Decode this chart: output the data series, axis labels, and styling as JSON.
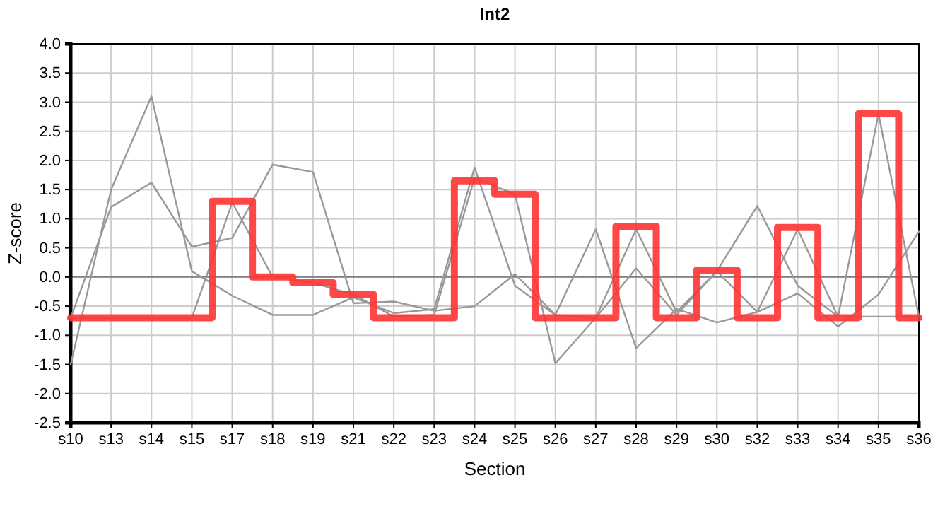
{
  "chart_data": {
    "type": "line",
    "title": "Int2",
    "xlabel": "Section",
    "ylabel": "Z-score",
    "categories": [
      "s10",
      "s13",
      "s14",
      "s15",
      "s17",
      "s18",
      "s19",
      "s21",
      "s22",
      "s23",
      "s24",
      "s25",
      "s26",
      "s27",
      "s28",
      "s29",
      "s30",
      "s32",
      "s33",
      "s34",
      "s35",
      "s36"
    ],
    "series": [
      {
        "color": "#999999",
        "values": [
          -1.5,
          1.5,
          3.1,
          0.1,
          -0.32,
          -0.65,
          -0.65,
          -0.35,
          -0.62,
          -0.55,
          1.88,
          -0.15,
          -0.65,
          -0.7,
          0.82,
          -0.6,
          0.1,
          1.22,
          -0.15,
          -0.68,
          -0.68,
          -0.68
        ]
      },
      {
        "color": "#999999",
        "values": [
          -0.7,
          1.2,
          1.62,
          0.52,
          0.67,
          1.93,
          1.8,
          -0.45,
          -0.42,
          -0.58,
          -0.5,
          0.05,
          -0.65,
          0.82,
          -1.22,
          -0.55,
          -0.78,
          -0.6,
          0.82,
          -0.68,
          2.8,
          -0.68
        ]
      },
      {
        "color": "#999999",
        "values": [
          -0.7,
          -0.7,
          -0.7,
          -0.7,
          1.28,
          0.0,
          -0.1,
          -0.3,
          -0.68,
          -0.65,
          1.7,
          1.42,
          -1.48,
          -0.7,
          0.15,
          -0.65,
          0.1,
          -0.6,
          -0.28,
          -0.85,
          -0.3,
          0.78
        ]
      },
      {
        "type": "step",
        "color": "#ff3333",
        "values": [
          -0.7,
          -0.7,
          -0.7,
          -0.7,
          1.3,
          0.0,
          -0.1,
          -0.3,
          -0.7,
          -0.7,
          1.65,
          1.42,
          -0.7,
          -0.7,
          0.87,
          -0.7,
          0.12,
          -0.7,
          0.85,
          -0.7,
          2.8,
          -0.7
        ]
      }
    ],
    "ylim": [
      -2.5,
      4.0
    ],
    "yticks": [
      {
        "value": -2.5,
        "label": "-2.5"
      },
      {
        "value": -2,
        "label": "-2.0"
      },
      {
        "value": -1.5,
        "label": "-1.5"
      },
      {
        "value": -1,
        "label": "-1.0"
      },
      {
        "value": -0.5,
        "label": "-0.5"
      },
      {
        "value": 0,
        "label": "0.0"
      },
      {
        "value": 0.5,
        "label": "0.5"
      },
      {
        "value": 1,
        "label": "1.0"
      },
      {
        "value": 1.5,
        "label": "1.5"
      },
      {
        "value": 2,
        "label": "2.0"
      },
      {
        "value": 2.5,
        "label": "2.5"
      },
      {
        "value": 3,
        "label": "3.0"
      },
      {
        "value": 3.5,
        "label": "3.5"
      },
      {
        "value": 4,
        "label": "4.0"
      }
    ],
    "ref_lines": [
      {
        "axis": "y",
        "value": 0,
        "color": "#808080"
      }
    ],
    "grid": true,
    "marker": "none"
  }
}
